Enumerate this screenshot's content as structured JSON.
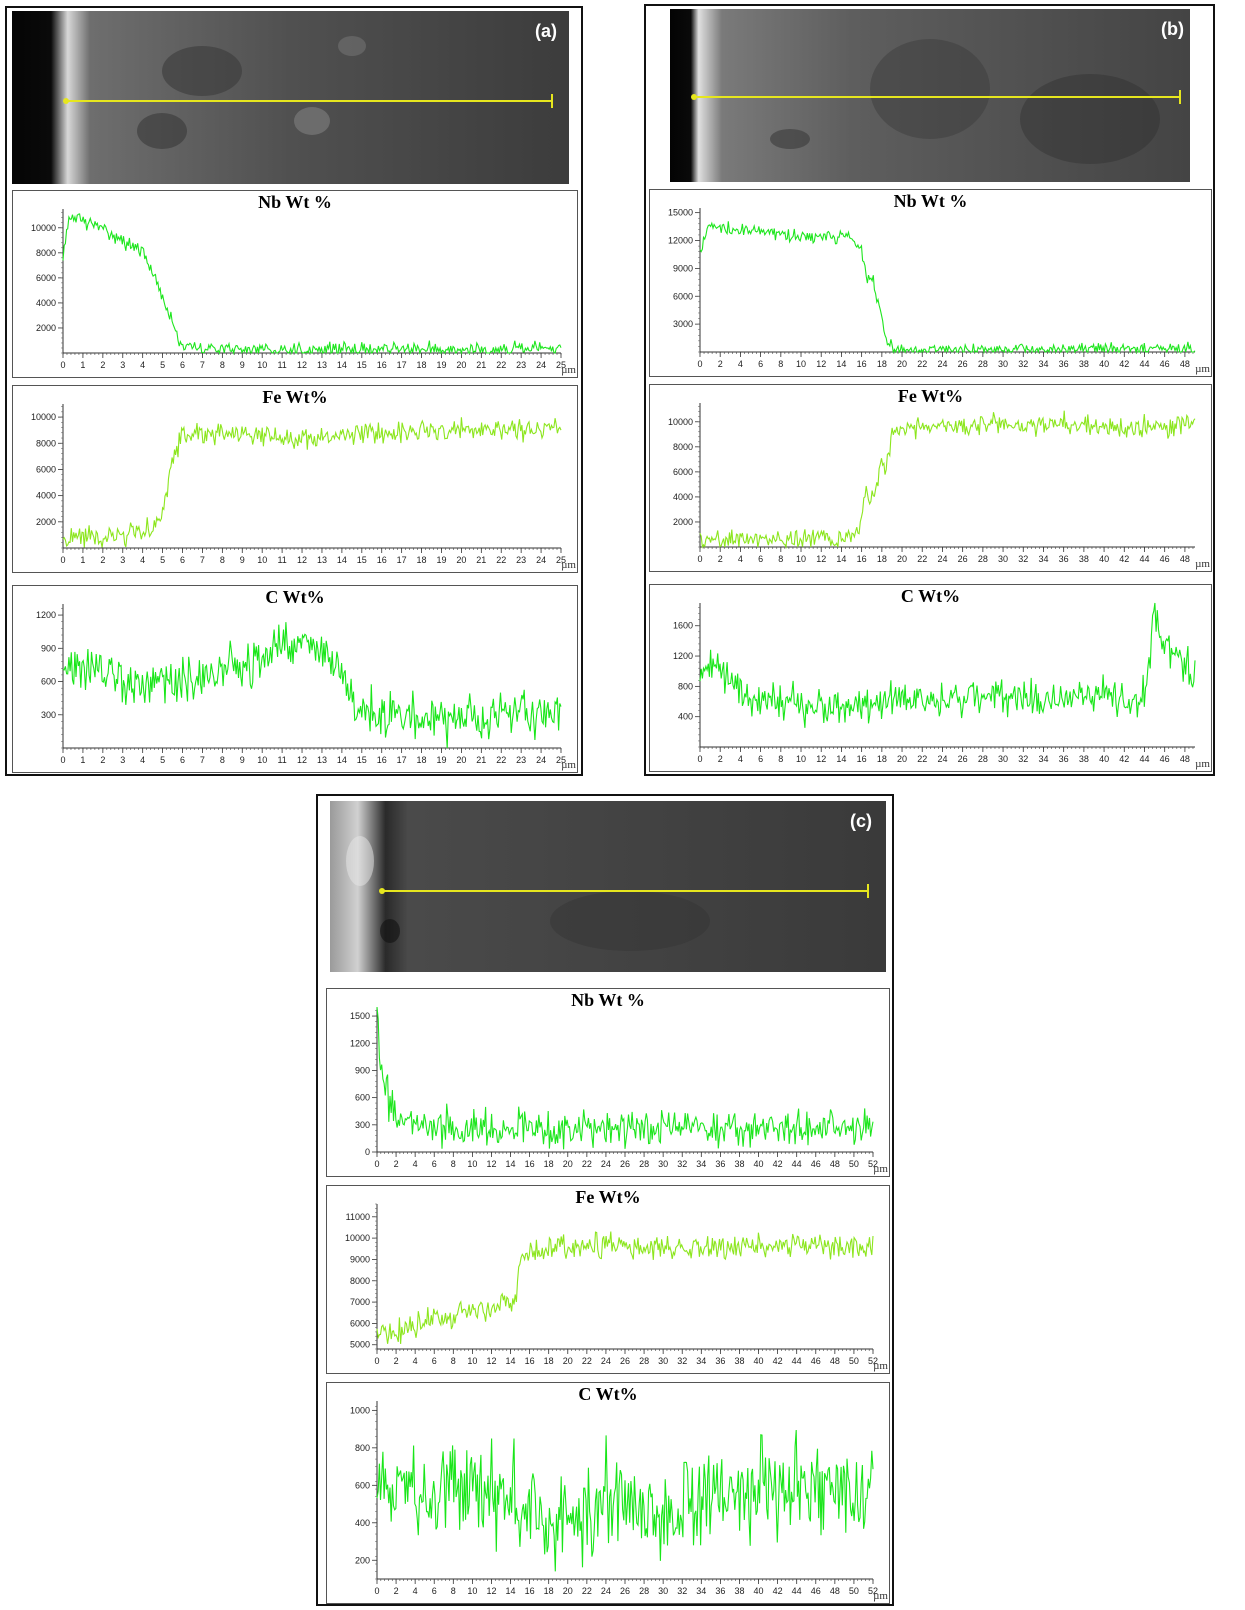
{
  "panels": [
    {
      "label": "(a)"
    },
    {
      "label": "(b)"
    },
    {
      "label": "(c)"
    }
  ],
  "colors": {
    "nb": "#1ee61e",
    "fe": "#8ce61e",
    "c": "#19e619",
    "scan_line": "#e6e61e"
  },
  "chart_data": [
    {
      "panel": "(a)",
      "type": "line",
      "title": "Nb Wt %",
      "xlabel": "µm",
      "ylabel": "",
      "xlim": [
        0,
        25
      ],
      "ylim": [
        0,
        11500
      ],
      "yticks": [
        2000,
        4000,
        6000,
        8000,
        10000
      ],
      "xtick_step": 1,
      "xtick_labels": [
        "0",
        "1",
        "2",
        "3",
        "4",
        "5",
        "6",
        "7",
        "8",
        "9",
        "10",
        "11",
        "12",
        "13",
        "14",
        "15",
        "16",
        "17",
        "18",
        "19",
        "20",
        "21",
        "22",
        "23",
        "24",
        "25"
      ],
      "series": [
        {
          "x": [
            0,
            0.3,
            0.8,
            1.2,
            2,
            3,
            4,
            4.5,
            5,
            5.5,
            5.8,
            6,
            7,
            10,
            15,
            20,
            25
          ],
          "y": [
            8000,
            10500,
            11000,
            10300,
            10000,
            9000,
            8000,
            6500,
            4500,
            2500,
            1000,
            500,
            300,
            300,
            300,
            300,
            300
          ],
          "noise": 450
        }
      ]
    },
    {
      "panel": "(a)",
      "type": "line",
      "title": "Fe Wt%",
      "xlabel": "µm",
      "ylabel": "",
      "xlim": [
        0,
        25
      ],
      "ylim": [
        0,
        11000
      ],
      "yticks": [
        2000,
        4000,
        6000,
        8000,
        10000
      ],
      "xtick_step": 1,
      "xtick_labels": [
        "0",
        "1",
        "2",
        "3",
        "4",
        "5",
        "6",
        "7",
        "8",
        "9",
        "10",
        "11",
        "12",
        "13",
        "14",
        "15",
        "16",
        "17",
        "18",
        "19",
        "20",
        "21",
        "22",
        "23",
        "24",
        "25"
      ],
      "series": [
        {
          "x": [
            0,
            3,
            4.5,
            5,
            5.5,
            6,
            8,
            12,
            16,
            20,
            25
          ],
          "y": [
            800,
            900,
            1500,
            2800,
            6500,
            8800,
            8800,
            8300,
            8800,
            9000,
            9200
          ],
          "noise": 650
        }
      ]
    },
    {
      "panel": "(a)",
      "type": "line",
      "title": "C Wt%",
      "xlabel": "µm",
      "ylabel": "",
      "xlim": [
        0,
        25
      ],
      "ylim": [
        0,
        1300
      ],
      "yticks": [
        300,
        600,
        900,
        1200
      ],
      "xtick_step": 1,
      "xtick_labels": [
        "0",
        "1",
        "2",
        "3",
        "4",
        "5",
        "6",
        "7",
        "8",
        "9",
        "10",
        "11",
        "12",
        "13",
        "14",
        "15",
        "16",
        "17",
        "18",
        "19",
        "20",
        "21",
        "22",
        "23",
        "24",
        "25"
      ],
      "series": [
        {
          "x": [
            0,
            2,
            4,
            6,
            8,
            10,
            11,
            12,
            13,
            14,
            15,
            16,
            19,
            25
          ],
          "y": [
            750,
            650,
            550,
            580,
            700,
            800,
            950,
            950,
            850,
            700,
            350,
            300,
            280,
            320
          ],
          "noise": 170
        }
      ]
    },
    {
      "panel": "(b)",
      "type": "line",
      "title": "Nb Wt %",
      "xlabel": "µm",
      "ylabel": "",
      "xlim": [
        0,
        49
      ],
      "ylim": [
        0,
        15500
      ],
      "yticks": [
        3000,
        6000,
        9000,
        12000,
        15000
      ],
      "xtick_step": 2,
      "xtick_labels": [
        "0",
        "2",
        "4",
        "6",
        "8",
        "10",
        "12",
        "14",
        "16",
        "18",
        "20",
        "22",
        "24",
        "26",
        "28",
        "30",
        "32",
        "34",
        "36",
        "38",
        "40",
        "42",
        "44",
        "46",
        "48"
      ],
      "series": [
        {
          "x": [
            0,
            0.5,
            1,
            4,
            10,
            15,
            16,
            16.5,
            17,
            17.5,
            18,
            18.5,
            19,
            20,
            30,
            49
          ],
          "y": [
            10500,
            13000,
            13500,
            13000,
            12500,
            12200,
            11000,
            7500,
            8000,
            6000,
            3500,
            1000,
            400,
            300,
            300,
            300
          ],
          "noise": 600
        }
      ]
    },
    {
      "panel": "(b)",
      "type": "line",
      "title": "Fe Wt%",
      "xlabel": "µm",
      "ylabel": "",
      "xlim": [
        0,
        49
      ],
      "ylim": [
        0,
        11500
      ],
      "yticks": [
        2000,
        4000,
        6000,
        8000,
        10000
      ],
      "xtick_step": 2,
      "xtick_labels": [
        "0",
        "2",
        "4",
        "6",
        "8",
        "10",
        "12",
        "14",
        "16",
        "18",
        "20",
        "22",
        "24",
        "26",
        "28",
        "30",
        "32",
        "34",
        "36",
        "38",
        "40",
        "42",
        "44",
        "46",
        "48"
      ],
      "series": [
        {
          "x": [
            0,
            15.5,
            16,
            16.5,
            17,
            17.5,
            18,
            18.5,
            19,
            20,
            30,
            40,
            46,
            49
          ],
          "y": [
            500,
            700,
            2500,
            4500,
            3800,
            4500,
            7500,
            6500,
            9200,
            9500,
            9800,
            9700,
            9300,
            10000
          ],
          "noise": 700
        }
      ]
    },
    {
      "panel": "(b)",
      "type": "line",
      "title": "C Wt%",
      "xlabel": "µm",
      "ylabel": "",
      "xlim": [
        0,
        49
      ],
      "ylim": [
        0,
        1900
      ],
      "yticks": [
        400,
        800,
        1200,
        1600
      ],
      "xtick_step": 2,
      "xtick_labels": [
        "0",
        "2",
        "4",
        "6",
        "8",
        "10",
        "12",
        "14",
        "16",
        "18",
        "20",
        "22",
        "24",
        "26",
        "28",
        "30",
        "32",
        "34",
        "36",
        "38",
        "40",
        "42",
        "44",
        "46",
        "48"
      ],
      "series": [
        {
          "x": [
            0,
            1,
            3,
            5,
            10,
            15,
            20,
            25,
            30,
            35,
            40,
            43.5,
            44.5,
            45,
            46,
            48,
            49
          ],
          "y": [
            950,
            1150,
            850,
            650,
            550,
            500,
            650,
            650,
            700,
            600,
            650,
            500,
            1100,
            1750,
            1350,
            1100,
            950
          ],
          "noise": 200
        }
      ]
    },
    {
      "panel": "(c)",
      "type": "line",
      "title": "Nb Wt %",
      "xlabel": "µm",
      "ylabel": "",
      "xlim": [
        0,
        52
      ],
      "ylim": [
        0,
        1600
      ],
      "yticks": [
        0,
        300,
        600,
        900,
        1200,
        1500
      ],
      "xtick_step": 2,
      "xtick_labels": [
        "0",
        "2",
        "4",
        "6",
        "8",
        "10",
        "12",
        "14",
        "16",
        "18",
        "20",
        "22",
        "24",
        "26",
        "28",
        "30",
        "32",
        "34",
        "36",
        "38",
        "40",
        "42",
        "44",
        "46",
        "48",
        "50",
        "52"
      ],
      "series": [
        {
          "x": [
            0,
            0.2,
            1,
            2,
            4,
            8,
            52
          ],
          "y": [
            1500,
            1100,
            600,
            400,
            300,
            260,
            270
          ],
          "noise": 170
        }
      ]
    },
    {
      "panel": "(c)",
      "type": "line",
      "title": "Fe Wt%",
      "xlabel": "µm",
      "ylabel": "",
      "xlim": [
        0,
        52
      ],
      "ylim": [
        4800,
        11600
      ],
      "yticks": [
        5000,
        6000,
        7000,
        8000,
        9000,
        10000,
        11000
      ],
      "xtick_step": 2,
      "xtick_labels": [
        "0",
        "2",
        "4",
        "6",
        "8",
        "10",
        "12",
        "14",
        "16",
        "18",
        "20",
        "22",
        "24",
        "26",
        "28",
        "30",
        "32",
        "34",
        "36",
        "38",
        "40",
        "42",
        "44",
        "46",
        "48",
        "50",
        "52"
      ],
      "series": [
        {
          "x": [
            0,
            4,
            8,
            12,
            14.5,
            15,
            16,
            22,
            30,
            40,
            52
          ],
          "y": [
            5400,
            6000,
            6400,
            6700,
            7000,
            9000,
            9300,
            9700,
            9400,
            9700,
            9600
          ],
          "noise": 500
        }
      ]
    },
    {
      "panel": "(c)",
      "type": "line",
      "title": "C Wt%",
      "xlabel": "µm",
      "ylabel": "",
      "xlim": [
        0,
        52
      ],
      "ylim": [
        100,
        1050
      ],
      "yticks": [
        200,
        400,
        600,
        800,
        1000
      ],
      "xtick_step": 2,
      "xtick_labels": [
        "0",
        "2",
        "4",
        "6",
        "8",
        "10",
        "12",
        "14",
        "16",
        "18",
        "20",
        "22",
        "24",
        "26",
        "28",
        "30",
        "32",
        "34",
        "36",
        "38",
        "40",
        "42",
        "44",
        "46",
        "48",
        "50",
        "52"
      ],
      "series": [
        {
          "x": [
            0,
            5,
            10,
            15,
            20,
            25,
            30,
            35,
            40,
            45,
            52
          ],
          "y": [
            650,
            550,
            600,
            520,
            450,
            550,
            480,
            520,
            580,
            560,
            600
          ],
          "noise": 210
        }
      ]
    }
  ]
}
